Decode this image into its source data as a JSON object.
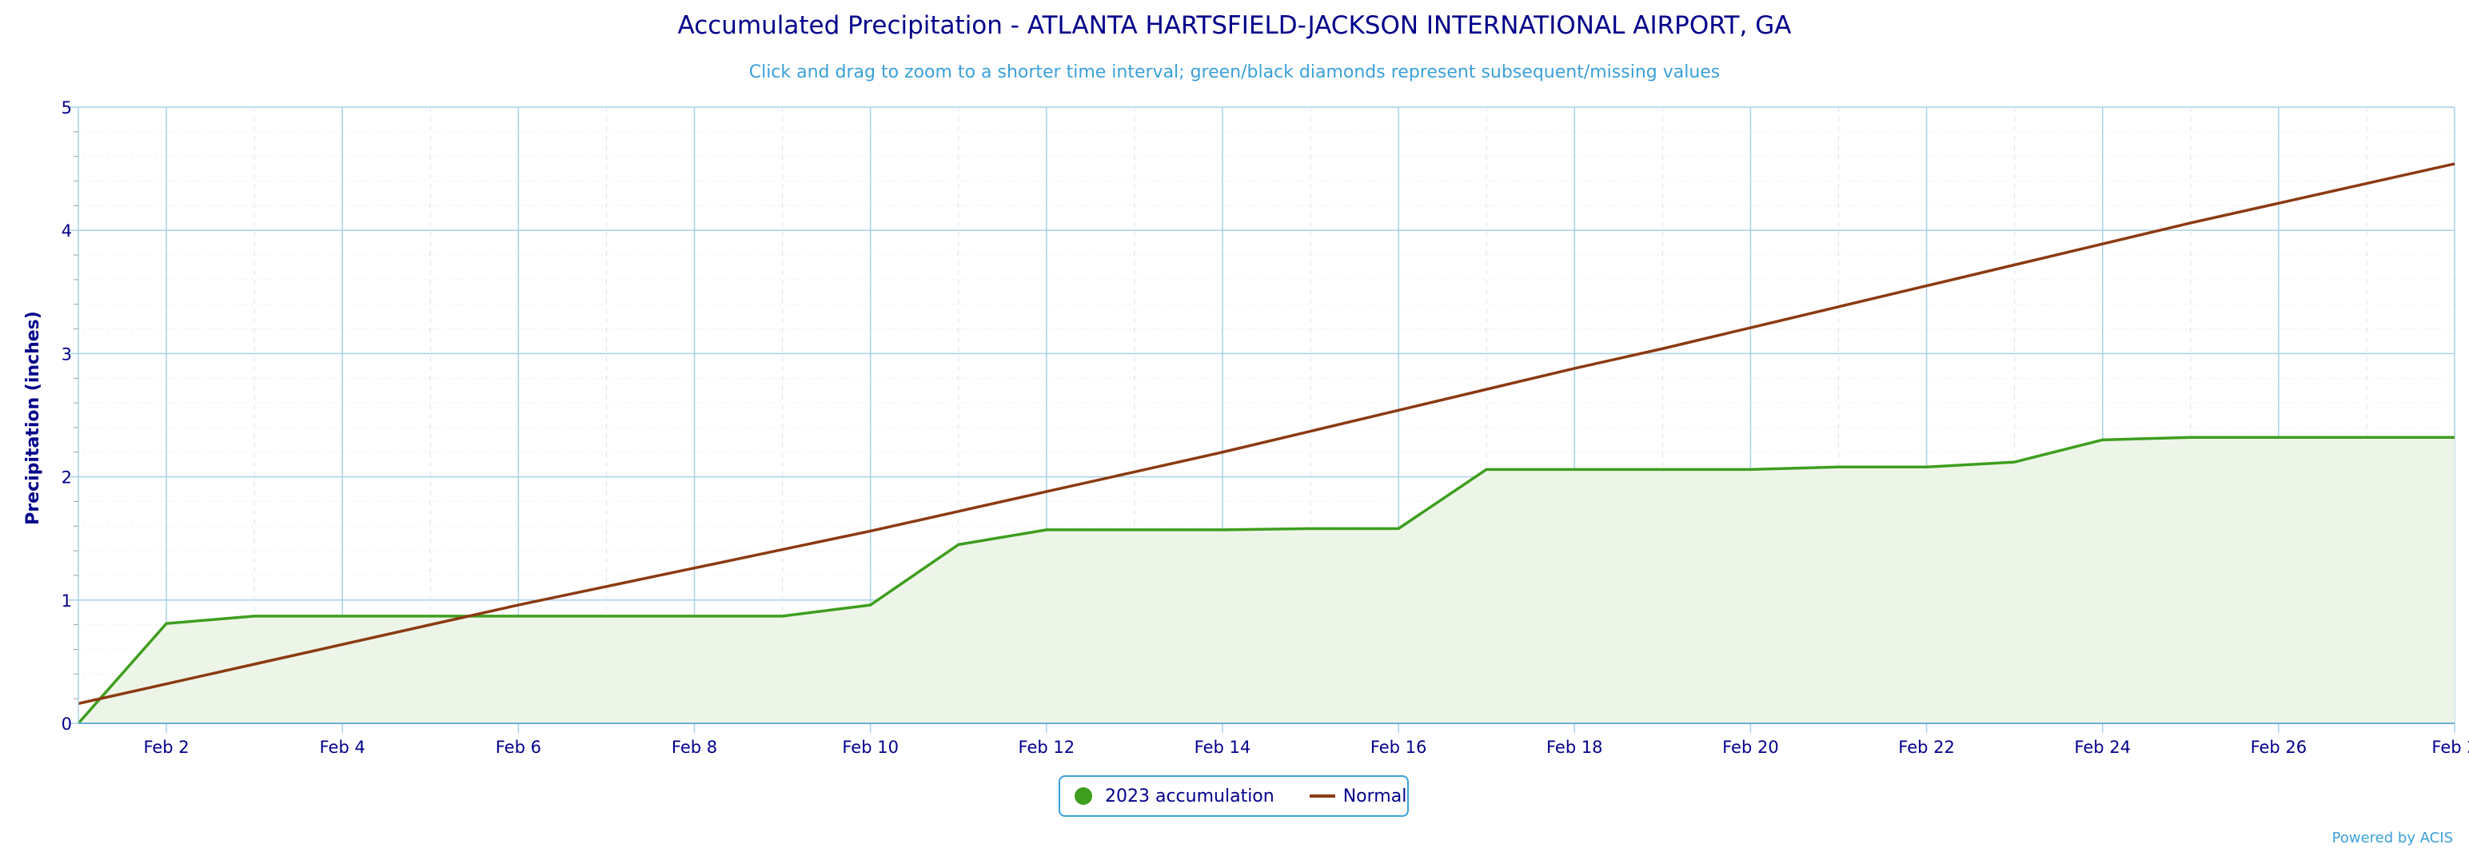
{
  "chart_data": {
    "type": "area",
    "title": "Accumulated Precipitation - ATLANTA HARTSFIELD-JACKSON INTERNATIONAL AIRPORT, GA",
    "subtitle": "Click and drag to zoom to a shorter time interval; green/black diamonds represent subsequent/missing values",
    "ylabel": "Precipitation (inches)",
    "xlabel": "",
    "ylim": [
      0,
      5
    ],
    "yticks": [
      "0",
      "1",
      "2",
      "3",
      "4",
      "5"
    ],
    "xlim": [
      1,
      28
    ],
    "xtick_labels": [
      "Feb 2",
      "Feb 4",
      "Feb 6",
      "Feb 8",
      "Feb 10",
      "Feb 12",
      "Feb 14",
      "Feb 16",
      "Feb 18",
      "Feb 20",
      "Feb 22",
      "Feb 24",
      "Feb 26",
      "Feb 2"
    ],
    "grid": true,
    "legend_position": "bottom-center",
    "series": [
      {
        "name": "2023 accumulation",
        "color": "#3e9e1e",
        "fill": "#edf5e8",
        "x": [
          "Feb 1",
          "Feb 2",
          "Feb 3",
          "Feb 4",
          "Feb 5",
          "Feb 6",
          "Feb 7",
          "Feb 8",
          "Feb 9",
          "Feb 10",
          "Feb 11",
          "Feb 12",
          "Feb 13",
          "Feb 14",
          "Feb 15",
          "Feb 16",
          "Feb 17",
          "Feb 18",
          "Feb 19",
          "Feb 20",
          "Feb 21",
          "Feb 22",
          "Feb 23",
          "Feb 24",
          "Feb 25",
          "Feb 26",
          "Feb 27",
          "Feb 28"
        ],
        "values": [
          0.0,
          0.81,
          0.87,
          0.87,
          0.87,
          0.87,
          0.87,
          0.87,
          0.87,
          0.96,
          1.45,
          1.57,
          1.57,
          1.57,
          1.58,
          1.58,
          2.06,
          2.06,
          2.06,
          2.06,
          2.08,
          2.08,
          2.12,
          2.3,
          2.32,
          2.32,
          2.32,
          2.32
        ]
      },
      {
        "name": "Normal",
        "color": "#8b3a12",
        "x": [
          "Feb 1",
          "Feb 2",
          "Feb 3",
          "Feb 4",
          "Feb 5",
          "Feb 6",
          "Feb 7",
          "Feb 8",
          "Feb 9",
          "Feb 10",
          "Feb 11",
          "Feb 12",
          "Feb 13",
          "Feb 14",
          "Feb 15",
          "Feb 16",
          "Feb 17",
          "Feb 18",
          "Feb 19",
          "Feb 20",
          "Feb 21",
          "Feb 22",
          "Feb 23",
          "Feb 24",
          "Feb 25",
          "Feb 26",
          "Feb 27",
          "Feb 28"
        ],
        "values": [
          0.16,
          0.32,
          0.48,
          0.64,
          0.8,
          0.96,
          1.11,
          1.26,
          1.41,
          1.56,
          1.72,
          1.88,
          2.04,
          2.2,
          2.37,
          2.54,
          2.71,
          2.88,
          3.04,
          3.21,
          3.38,
          3.55,
          3.72,
          3.89,
          4.06,
          4.22,
          4.38,
          4.54
        ]
      }
    ]
  },
  "legend": {
    "series1_label": "2023 accumulation",
    "series2_label": "Normal"
  },
  "credits": "Powered by ACIS",
  "colors": {
    "axis_text": "#00008b",
    "subtitle": "#3aa0d8",
    "grid": "#a8d0e6"
  }
}
